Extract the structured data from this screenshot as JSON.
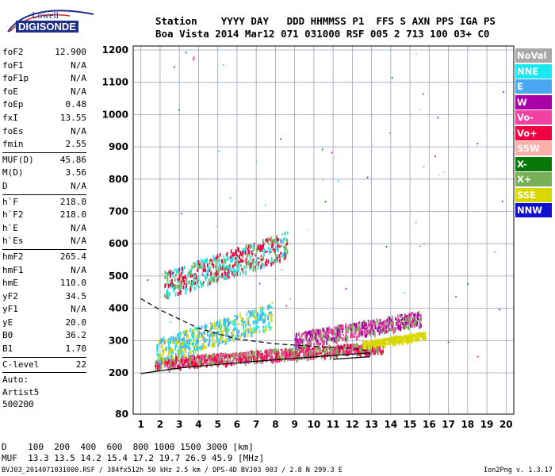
{
  "logo": {
    "line1": "Lowell",
    "line2": "DIGISONDE"
  },
  "header": {
    "labels": "Station    YYYY DAY   DDD HHMMSS P1  FFS S AXN PPS IGA PS",
    "values": "Boa Vista 2014 Mar12 071 031000 RSF 005 2 713 100 03+ C0"
  },
  "params": {
    "group1": [
      {
        "label": "foF2",
        "value": "12.900"
      },
      {
        "label": "foF1",
        "value": "N/A"
      },
      {
        "label": "foF1p",
        "value": "N/A"
      },
      {
        "label": "foE",
        "value": "N/A"
      },
      {
        "label": "foEp",
        "value": "0.48"
      },
      {
        "label": "fxI",
        "value": "13.55"
      },
      {
        "label": "foEs",
        "value": "N/A"
      },
      {
        "label": "fmin",
        "value": "2.55"
      }
    ],
    "group2": [
      {
        "label": "MUF(D)",
        "value": "45.86"
      },
      {
        "label": "M(D)",
        "value": "3.56"
      },
      {
        "label": "D",
        "value": "N/A"
      }
    ],
    "group3": [
      {
        "label": "h`F",
        "value": "218.0"
      },
      {
        "label": "h`F2",
        "value": "218.0"
      },
      {
        "label": "h`E",
        "value": "N/A"
      },
      {
        "label": "h`Es",
        "value": "N/A"
      }
    ],
    "group4": [
      {
        "label": "hmF2",
        "value": "265.4"
      },
      {
        "label": "hmF1",
        "value": "N/A"
      },
      {
        "label": "hmE",
        "value": "110.0"
      },
      {
        "label": "yF2",
        "value": "34.5"
      },
      {
        "label": "yF1",
        "value": "N/A"
      },
      {
        "label": "yE",
        "value": "20.0"
      },
      {
        "label": "B0",
        "value": "36.2"
      },
      {
        "label": "B1",
        "value": "1.70"
      }
    ],
    "group5": [
      {
        "label": "C-level",
        "value": "22"
      }
    ],
    "group6": [
      "Auto:",
      "Artist5",
      "500200"
    ]
  },
  "legend": [
    {
      "label": "NoVal",
      "color": "#a8a8a8"
    },
    {
      "label": "NNE",
      "color": "#19e8f0"
    },
    {
      "label": "E",
      "color": "#4aa8f2"
    },
    {
      "label": "W",
      "color": "#a800a8"
    },
    {
      "label": "Vo-",
      "color": "#f040a0"
    },
    {
      "label": "Vo+",
      "color": "#f00040"
    },
    {
      "label": "SSW",
      "color": "#f8b0a8"
    },
    {
      "label": "X-",
      "color": "#087808"
    },
    {
      "label": "X+",
      "color": "#78b058"
    },
    {
      "label": "SSE",
      "color": "#d8d800"
    },
    {
      "label": "NNW",
      "color": "#1010d0"
    }
  ],
  "muf_table": {
    "line1": "D    100  200  400  600  800 1000 1500 3000 [km]",
    "line2": "MUF  13.3 13.5 14.2 15.4 17.2 19.7 26.9 45.9 [MHz]"
  },
  "footer": {
    "left": "BVJ03_2014071031000.RSF / 384fx512h 50 kHz 2.5 km / DPS-4D BVJ03 003 / 2.8 N 299.3 E",
    "right": "Ion2Png v. 1.3.17"
  },
  "chart_data": {
    "type": "scatter",
    "xlabel": "",
    "ylabel": "",
    "xlim": [
      0.6,
      20.4
    ],
    "ylim": [
      80,
      1200
    ],
    "x_ticks": [
      "1",
      "2",
      "3",
      "4",
      "5",
      "6",
      "7",
      "8",
      "9",
      "10",
      "11",
      "12",
      "13",
      "14",
      "15",
      "16",
      "17",
      "18",
      "19",
      "20"
    ],
    "y_ticks": [
      "80",
      "200",
      "300",
      "400",
      "500",
      "600",
      "700",
      "800",
      "900",
      "1000",
      "1100",
      "1200"
    ],
    "y_scale": "piecewise (80–200 compressed)",
    "grid": true,
    "echo_regions": [
      {
        "name": "F2 trace (O/X)",
        "x": [
          1.7,
          13.6
        ],
        "y": [
          215,
          300
        ],
        "dominant": [
          "Vo+",
          "Vo-",
          "X+"
        ]
      },
      {
        "name": "high-frequency trace",
        "x": [
          9.0,
          15.6
        ],
        "y": [
          280,
          395
        ],
        "dominant": [
          "W",
          "Vo-",
          "X+"
        ]
      },
      {
        "name": "second hop",
        "x": [
          2.2,
          8.6
        ],
        "y": [
          435,
          640
        ],
        "dominant": [
          "Vo+",
          "X+",
          "NNE"
        ]
      },
      {
        "name": "spread echoes",
        "x": [
          1.8,
          7.8
        ],
        "y": [
          230,
          420
        ],
        "dominant": [
          "E",
          "NNE",
          "SSE"
        ]
      },
      {
        "name": "SSE trace",
        "x": [
          12.5,
          15.8
        ],
        "y": [
          280,
          330
        ],
        "dominant": [
          "SSE"
        ]
      }
    ],
    "profile_curve": {
      "x": [
        1.0,
        2.0,
        4.0,
        6.0,
        8.0,
        10.0,
        12.0,
        12.9
      ],
      "y": [
        430,
        395,
        338,
        305,
        290,
        282,
        276,
        268
      ]
    },
    "virtual_height_curve": {
      "x": [
        1.0,
        3.0,
        5.0,
        7.0,
        9.0,
        11.0,
        12.9
      ],
      "y": [
        198,
        215,
        226,
        236,
        245,
        254,
        262
      ]
    }
  }
}
